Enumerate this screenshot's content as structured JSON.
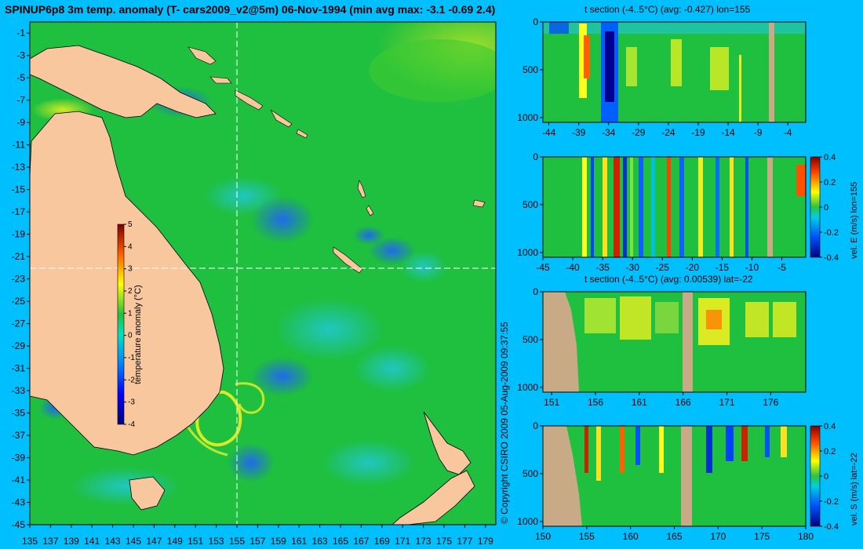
{
  "page": {
    "title": "SPINUP6p8 3m temp. anomaly (T- cars2009_v2@5m) 06-Nov-1994 (min avg max: -3.1 -0.69 2.4)",
    "copyright": "© Copyright CSIRO 2009   05-Aug-2009 09:37:55"
  },
  "colors": {
    "background": "#00bfff",
    "land": "#f9c79d",
    "section_land": "#c8aa86",
    "ocean_mid": "#1fbf3f"
  },
  "chart_data": [
    {
      "id": "map",
      "type": "heatmap",
      "title": "SPINUP6p8 3m temp. anomaly (T- cars2009_v2@5m) 06-Nov-1994 (min avg max: -3.1 -0.69 2.4)",
      "x_ticks": [
        "135",
        "137",
        "139",
        "141",
        "143",
        "145",
        "147",
        "149",
        "151",
        "153",
        "155",
        "157",
        "159",
        "161",
        "163",
        "165",
        "167",
        "169",
        "171",
        "173",
        "175",
        "177",
        "179"
      ],
      "y_ticks": [
        "-1",
        "-3",
        "-5",
        "-7",
        "-9",
        "-11",
        "-13",
        "-15",
        "-17",
        "-19",
        "-21",
        "-23",
        "-25",
        "-27",
        "-29",
        "-31",
        "-33",
        "-35",
        "-37",
        "-39",
        "-41",
        "-43",
        "-45"
      ],
      "xlim": [
        135,
        180
      ],
      "ylim": [
        -45,
        0
      ],
      "crosshair": {
        "lon": 155,
        "lat": -22
      },
      "colorbar": {
        "label": "temperature anomaly (°C)",
        "ticks": [
          "5",
          "4",
          "3",
          "2",
          "1",
          "0",
          "-1",
          "-2",
          "-3",
          "-4"
        ],
        "range": [
          -4,
          5
        ]
      }
    },
    {
      "id": "tsec-lon",
      "type": "heatmap",
      "title": "t section (-4..5°C) (avg: -0.427) lon=155",
      "x_ticks": [
        "-44",
        "-39",
        "-34",
        "-29",
        "-24",
        "-19",
        "-14",
        "-9",
        "-4"
      ],
      "y_ticks": [
        "0",
        "500",
        "1000"
      ],
      "xlim": [
        -45,
        -1
      ],
      "ylim": [
        1050,
        0
      ]
    },
    {
      "id": "vel-e",
      "type": "heatmap",
      "title": "",
      "x_ticks": [
        "-45",
        "-40",
        "-35",
        "-30",
        "-25",
        "-20",
        "-15",
        "-10",
        "-5"
      ],
      "y_ticks": [
        "0",
        "500",
        "1000"
      ],
      "xlim": [
        -45,
        -1
      ],
      "ylim": [
        1050,
        0
      ],
      "colorbar": {
        "label": "vel. E (m/s) lon=155",
        "ticks": [
          "0.4",
          "0.2",
          "0",
          "-0.2",
          "-0.4"
        ],
        "range": [
          -0.4,
          0.4
        ]
      }
    },
    {
      "id": "tsec-lat",
      "type": "heatmap",
      "title": "t section (-4..5°C) (avg: 0.00539) lat=-22",
      "x_ticks": [
        "151",
        "156",
        "161",
        "166",
        "171",
        "176"
      ],
      "y_ticks": [
        "0",
        "500",
        "1000"
      ],
      "xlim": [
        150,
        180
      ],
      "ylim": [
        1050,
        0
      ]
    },
    {
      "id": "vel-s",
      "type": "heatmap",
      "title": "",
      "x_ticks": [
        "150",
        "155",
        "160",
        "165",
        "170",
        "175",
        "180"
      ],
      "y_ticks": [
        "0",
        "500",
        "1000"
      ],
      "xlim": [
        150,
        180
      ],
      "ylim": [
        1050,
        0
      ],
      "colorbar": {
        "label": "vel. S (m/s) lat=-22",
        "ticks": [
          "0.4",
          "0.2",
          "0",
          "-0.2",
          "-0.4"
        ],
        "range": [
          -0.4,
          0.4
        ]
      }
    }
  ]
}
